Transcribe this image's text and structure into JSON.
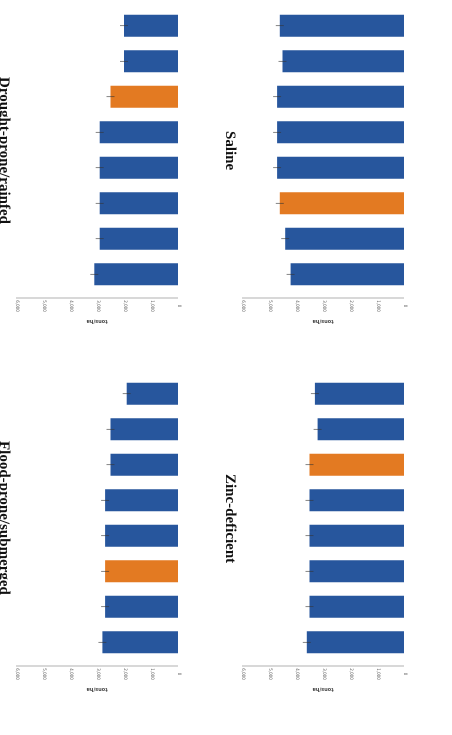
{
  "colors": {
    "bar": "#27569d",
    "highlight": "#e37a22",
    "axis": "#999999"
  },
  "chart_data": [
    {
      "type": "bar",
      "title": "Drought-prone/rainfed",
      "ylabel": "tons/ha",
      "ylim": [
        0,
        6000
      ],
      "yticks": [
        "0",
        "1,000",
        "2,000",
        "3,000",
        "4,000",
        "5,000",
        "6,000"
      ],
      "categories": [
        "",
        "",
        "",
        "",
        "",
        "",
        "",
        ""
      ],
      "values": [
        2000,
        2000,
        2500,
        2900,
        2900,
        2900,
        2900,
        3100
      ],
      "value_labels": [
        "",
        "",
        "",
        "",
        "",
        "",
        "",
        ""
      ],
      "highlight_index": 2
    },
    {
      "type": "bar",
      "title": "Saline",
      "ylabel": "tons/ha",
      "ylim": [
        0,
        6000
      ],
      "yticks": [
        "0",
        "1,000",
        "2,000",
        "3,000",
        "4,000",
        "5,000",
        "6,000"
      ],
      "categories": [
        "",
        "",
        "",
        "",
        "",
        "",
        "",
        ""
      ],
      "values": [
        4600,
        4500,
        4700,
        4700,
        4700,
        4600,
        4400,
        4200
      ],
      "value_labels": [
        "",
        "",
        "",
        "",
        "",
        "",
        "",
        ""
      ],
      "highlight_index": 5
    },
    {
      "type": "bar",
      "title": "Flood-prone/submerged",
      "ylabel": "tons/ha",
      "ylim": [
        0,
        6000
      ],
      "yticks": [
        "0",
        "1,000",
        "2,000",
        "3,000",
        "4,000",
        "5,000",
        "6,000"
      ],
      "categories": [
        "",
        "",
        "",
        "",
        "",
        "",
        "",
        ""
      ],
      "values": [
        1900,
        2500,
        2500,
        2700,
        2700,
        2700,
        2700,
        2800
      ],
      "value_labels": [
        "",
        "",
        "",
        "",
        "",
        "",
        "",
        ""
      ],
      "highlight_index": 5
    },
    {
      "type": "bar",
      "title": "Zinc-deficient",
      "ylabel": "tons/ha",
      "ylim": [
        0,
        6000
      ],
      "yticks": [
        "0",
        "1,000",
        "2,000",
        "3,000",
        "4,000",
        "5,000",
        "6,000"
      ],
      "categories": [
        "",
        "",
        "",
        "",
        "",
        "",
        "",
        ""
      ],
      "values": [
        3300,
        3200,
        3500,
        3500,
        3500,
        3500,
        3500,
        3600
      ],
      "value_labels": [
        "",
        "",
        "",
        "",
        "",
        "",
        "",
        ""
      ],
      "highlight_index": 2
    }
  ]
}
